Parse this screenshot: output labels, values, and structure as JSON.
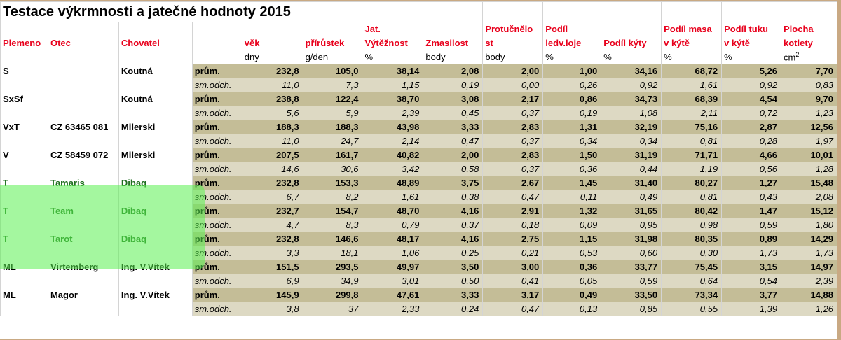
{
  "title": "Testace výkrmnosti a jatečné hodnoty 2015",
  "headers": {
    "plemeno": "Plemeno",
    "otec": "Otec",
    "chovatel": "Chovatel",
    "vek": "věk",
    "prirustek": "přírůstek",
    "jat_1": "Jat.",
    "jat_2": "Výtěžnost",
    "zmasilost": "Zmasilost",
    "protucnelost_1": "Protučnělo",
    "protucnelost_2": "st",
    "podil_ledv_1": "Podíl",
    "podil_ledv_2": "ledv.loje",
    "podil_kyty": "Podíl kýty",
    "podil_masa_1": "Podíl masa",
    "podil_masa_2": "v kýtě",
    "podil_tuku_1": "Podíl tuku",
    "podil_tuku_2": "v kýtě",
    "plocha_1": "Plocha",
    "plocha_2": "kotlety"
  },
  "units": [
    "dny",
    "g/den",
    "%",
    "body",
    "body",
    "%",
    "%",
    "%",
    "%",
    "cm",
    "2"
  ],
  "row_labels": {
    "mean": "prům.",
    "sd": "sm.odch."
  },
  "groups": [
    {
      "plemeno": "S",
      "otec": "",
      "chovatel": "Koutná",
      "mean": [
        "232,8",
        "105,0",
        "38,14",
        "2,08",
        "2,00",
        "1,00",
        "34,16",
        "68,72",
        "5,26",
        "7,70"
      ],
      "sd": [
        "11,0",
        "7,3",
        "1,15",
        "0,19",
        "0,00",
        "0,26",
        "0,92",
        "1,61",
        "0,92",
        "0,83"
      ]
    },
    {
      "plemeno": "SxSf",
      "otec": "",
      "chovatel": "Koutná",
      "mean": [
        "238,8",
        "122,4",
        "38,70",
        "3,08",
        "2,17",
        "0,86",
        "34,73",
        "68,39",
        "4,54",
        "9,70"
      ],
      "sd": [
        "5,6",
        "5,9",
        "2,39",
        "0,45",
        "0,37",
        "0,19",
        "1,08",
        "2,11",
        "0,72",
        "1,23"
      ]
    },
    {
      "plemeno": "VxT",
      "otec": "CZ 63465 081",
      "chovatel": "Milerski",
      "mean": [
        "188,3",
        "188,3",
        "43,98",
        "3,33",
        "2,83",
        "1,31",
        "32,19",
        "75,16",
        "2,87",
        "12,56"
      ],
      "sd": [
        "11,0",
        "24,7",
        "2,14",
        "0,47",
        "0,37",
        "0,34",
        "0,34",
        "0,81",
        "0,28",
        "1,97"
      ]
    },
    {
      "plemeno": "V",
      "otec": "CZ 58459 072",
      "chovatel": "Milerski",
      "mean": [
        "207,5",
        "161,7",
        "40,82",
        "2,00",
        "2,83",
        "1,50",
        "31,19",
        "71,71",
        "4,66",
        "10,01"
      ],
      "sd": [
        "14,6",
        "30,6",
        "3,42",
        "0,58",
        "0,37",
        "0,36",
        "0,44",
        "1,19",
        "0,56",
        "1,28"
      ]
    },
    {
      "plemeno": "T",
      "otec": "Tamaris",
      "chovatel": "Dibaq",
      "green": true,
      "mean": [
        "232,8",
        "153,3",
        "48,89",
        "3,75",
        "2,67",
        "1,45",
        "31,40",
        "80,27",
        "1,27",
        "15,48"
      ],
      "sd": [
        "6,7",
        "8,2",
        "1,61",
        "0,38",
        "0,47",
        "0,11",
        "0,49",
        "0,81",
        "0,43",
        "2,08"
      ]
    },
    {
      "plemeno": "T",
      "otec": "Team",
      "chovatel": "Dibaq",
      "green": true,
      "mean": [
        "232,7",
        "154,7",
        "48,70",
        "4,16",
        "2,91",
        "1,32",
        "31,65",
        "80,42",
        "1,47",
        "15,12"
      ],
      "sd": [
        "4,7",
        "8,3",
        "0,79",
        "0,37",
        "0,18",
        "0,09",
        "0,95",
        "0,98",
        "0,59",
        "1,80"
      ]
    },
    {
      "plemeno": "T",
      "otec": "Tarot",
      "chovatel": "Dibaq",
      "green": true,
      "mean": [
        "232,8",
        "146,6",
        "48,17",
        "4,16",
        "2,75",
        "1,15",
        "31,98",
        "80,35",
        "0,89",
        "14,29"
      ],
      "sd": [
        "3,3",
        "18,1",
        "1,06",
        "0,25",
        "0,21",
        "0,53",
        "0,60",
        "0,30",
        "1,73",
        "1,73"
      ]
    },
    {
      "plemeno": "ML",
      "otec": "Virtemberg",
      "chovatel": "Ing. V.Vítek",
      "mean": [
        "151,5",
        "293,5",
        "49,97",
        "3,50",
        "3,00",
        "0,36",
        "33,77",
        "75,45",
        "3,15",
        "14,97"
      ],
      "sd": [
        "6,9",
        "34,9",
        "3,01",
        "0,50",
        "0,41",
        "0,05",
        "0,59",
        "0,64",
        "0,54",
        "2,39"
      ]
    },
    {
      "plemeno": "ML",
      "otec": "Magor",
      "chovatel": "Ing. V.Vítek",
      "mean": [
        "145,9",
        "299,8",
        "47,61",
        "3,33",
        "3,17",
        "0,49",
        "33,50",
        "73,34",
        "3,77",
        "14,88"
      ],
      "sd": [
        "3,8",
        "37",
        "2,33",
        "0,24",
        "0,47",
        "0,13",
        "0,85",
        "0,55",
        "1,39",
        "1,26"
      ]
    }
  ],
  "colors": {
    "header_red": "#e8001c",
    "mean_row_bg": "#c4bd97",
    "sd_row_bg": "#ddd9c3",
    "highlight_green": "#5af050",
    "frame": "#c9a983"
  }
}
